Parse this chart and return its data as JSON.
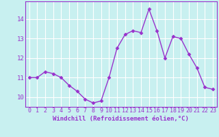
{
  "x": [
    0,
    1,
    2,
    3,
    4,
    5,
    6,
    7,
    8,
    9,
    10,
    11,
    12,
    13,
    14,
    15,
    16,
    17,
    18,
    19,
    20,
    21,
    22,
    23
  ],
  "y": [
    11.0,
    11.0,
    11.3,
    11.2,
    11.0,
    10.6,
    10.3,
    9.9,
    9.7,
    9.8,
    11.0,
    12.5,
    13.2,
    13.4,
    13.3,
    14.5,
    13.4,
    12.0,
    13.1,
    13.0,
    12.2,
    11.5,
    10.5,
    10.4
  ],
  "line_color": "#9932CC",
  "marker": "D",
  "marker_size": 2.5,
  "bg_color": "#c8f0f0",
  "grid_color": "#ffffff",
  "xlabel": "Windchill (Refroidissement éolien,°C)",
  "xlabel_color": "#9932CC",
  "tick_color": "#9932CC",
  "spine_color": "#9932CC",
  "ylim": [
    9.5,
    14.9
  ],
  "yticks": [
    10,
    11,
    12,
    13,
    14
  ],
  "xticks": [
    0,
    1,
    2,
    3,
    4,
    5,
    6,
    7,
    8,
    9,
    10,
    11,
    12,
    13,
    14,
    15,
    16,
    17,
    18,
    19,
    20,
    21,
    22,
    23
  ],
  "line_width": 1.0,
  "tick_fontsize": 6.0,
  "xlabel_fontsize": 6.5
}
